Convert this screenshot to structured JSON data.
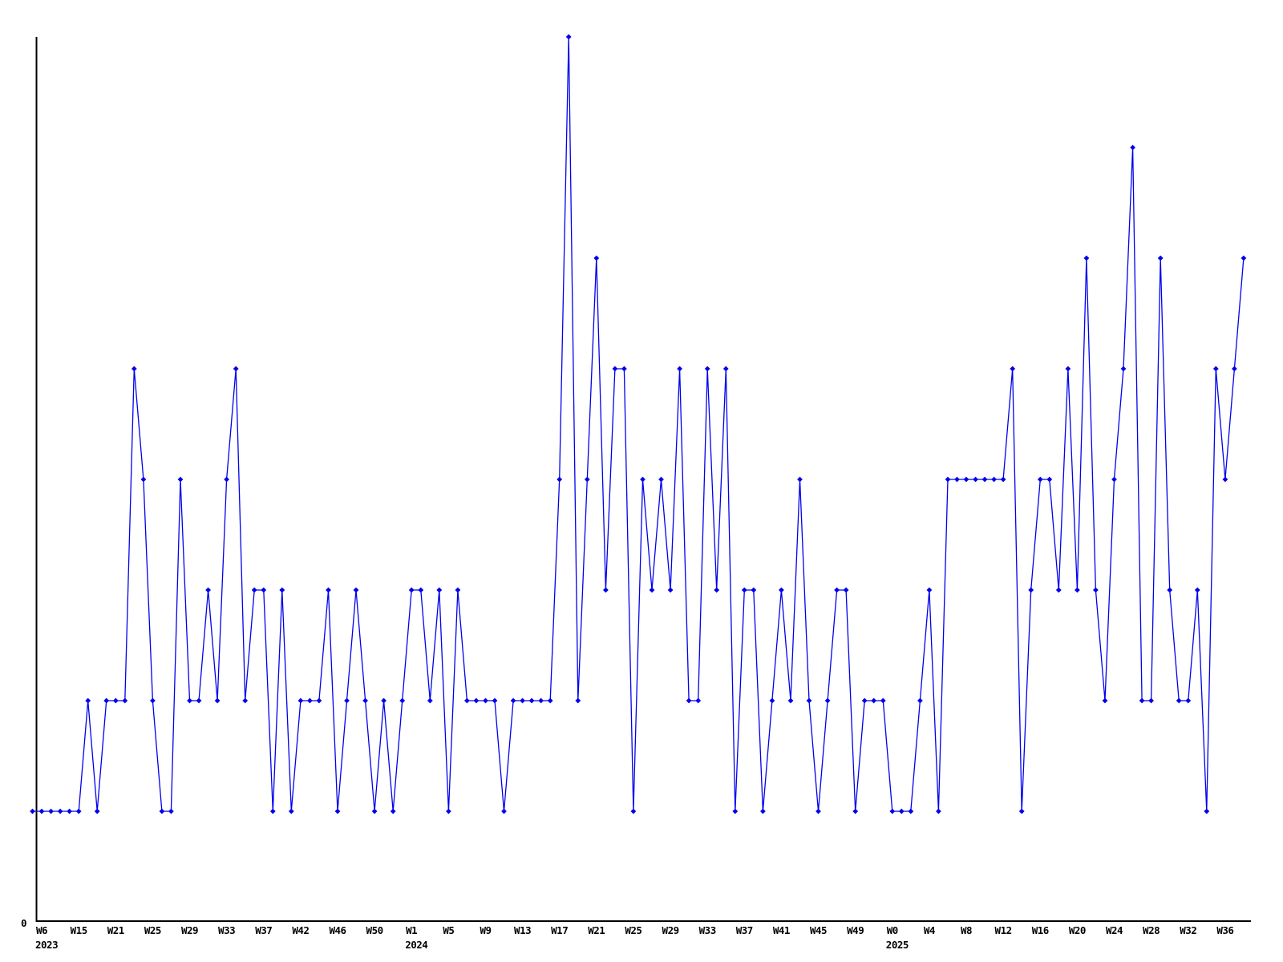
{
  "chart_data": {
    "type": "line",
    "title": "",
    "xlabel": "",
    "ylabel": "",
    "grid": false,
    "legend": null,
    "line_color": "#0000ee",
    "marker": "diamond",
    "axis_color": "#000000",
    "y_axis": {
      "zero_label": "0",
      "ylim": [
        0,
        8
      ]
    },
    "x_unit": "ISO week",
    "values": [
      1,
      1,
      1,
      1,
      1,
      1,
      2,
      1,
      2,
      2,
      2,
      5,
      4,
      2,
      1,
      1,
      4,
      2,
      2,
      3,
      2,
      4,
      5,
      2,
      3,
      3,
      1,
      3,
      1,
      2,
      2,
      2,
      3,
      1,
      2,
      3,
      2,
      1,
      2,
      1,
      2,
      3,
      3,
      2,
      3,
      1,
      3,
      2,
      2,
      2,
      2,
      1,
      2,
      2,
      2,
      2,
      2,
      4,
      8,
      2,
      4,
      6,
      3,
      5,
      5,
      1,
      4,
      3,
      4,
      3,
      5,
      2,
      2,
      5,
      3,
      5,
      1,
      3,
      3,
      1,
      2,
      3,
      2,
      4,
      2,
      1,
      2,
      3,
      3,
      1,
      2,
      2,
      2,
      1,
      1,
      1,
      2,
      3,
      1,
      4,
      4,
      4,
      4,
      4,
      4,
      4,
      5,
      1,
      3,
      4,
      4,
      3,
      5,
      3,
      6,
      3,
      2,
      4,
      5,
      7,
      2,
      2,
      6,
      3,
      2,
      2,
      3,
      1,
      5,
      4,
      5,
      6
    ],
    "x_ticks": [
      {
        "i": 1,
        "label": "W6",
        "year": "2023"
      },
      {
        "i": 5,
        "label": "W15"
      },
      {
        "i": 9,
        "label": "W21"
      },
      {
        "i": 13,
        "label": "W25"
      },
      {
        "i": 17,
        "label": "W29"
      },
      {
        "i": 21,
        "label": "W33"
      },
      {
        "i": 25,
        "label": "W37"
      },
      {
        "i": 29,
        "label": "W42"
      },
      {
        "i": 33,
        "label": "W46"
      },
      {
        "i": 37,
        "label": "W50"
      },
      {
        "i": 41,
        "label": "W1",
        "year": "2024"
      },
      {
        "i": 45,
        "label": "W5"
      },
      {
        "i": 49,
        "label": "W9"
      },
      {
        "i": 53,
        "label": "W13"
      },
      {
        "i": 57,
        "label": "W17"
      },
      {
        "i": 61,
        "label": "W21"
      },
      {
        "i": 65,
        "label": "W25"
      },
      {
        "i": 69,
        "label": "W29"
      },
      {
        "i": 73,
        "label": "W33"
      },
      {
        "i": 77,
        "label": "W37"
      },
      {
        "i": 81,
        "label": "W41"
      },
      {
        "i": 85,
        "label": "W45"
      },
      {
        "i": 89,
        "label": "W49"
      },
      {
        "i": 93,
        "label": "W0",
        "year": "2025"
      },
      {
        "i": 97,
        "label": "W4"
      },
      {
        "i": 101,
        "label": "W8"
      },
      {
        "i": 105,
        "label": "W12"
      },
      {
        "i": 109,
        "label": "W16"
      },
      {
        "i": 113,
        "label": "W20"
      },
      {
        "i": 117,
        "label": "W24"
      },
      {
        "i": 121,
        "label": "W28"
      },
      {
        "i": 125,
        "label": "W32"
      },
      {
        "i": 129,
        "label": "W36"
      }
    ]
  }
}
